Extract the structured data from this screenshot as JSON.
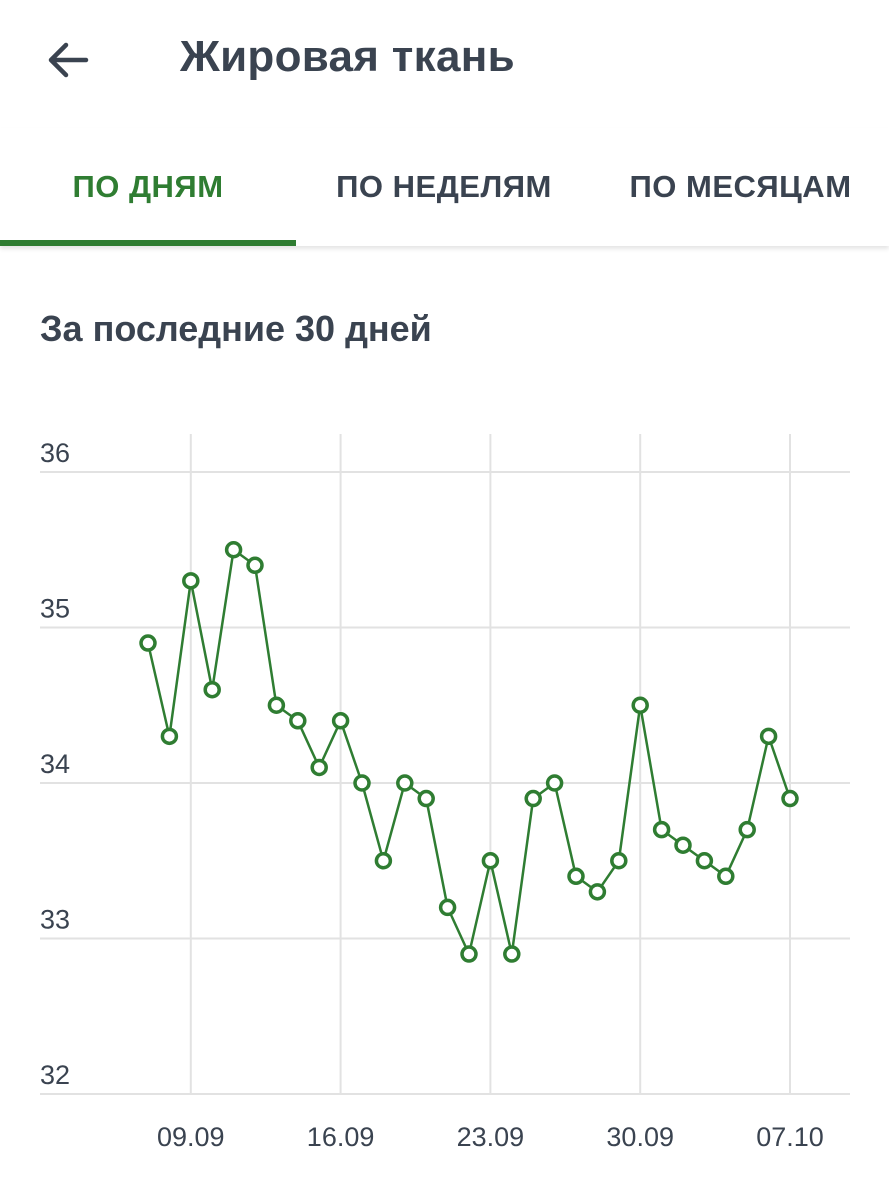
{
  "header": {
    "title": "Жировая ткань",
    "back_icon": "arrow-left-icon"
  },
  "tabs": [
    {
      "label": "ПО ДНЯМ",
      "active": true
    },
    {
      "label": "ПО НЕДЕЛЯМ",
      "active": false
    },
    {
      "label": "ПО МЕСЯЦАМ",
      "active": false
    }
  ],
  "period_label": "За последние 30 дней",
  "colors": {
    "accent": "#2f7d32",
    "text": "#3a4350",
    "grid": "#e2e2e2"
  },
  "chart_data": {
    "type": "line",
    "title": "",
    "xlabel": "",
    "ylabel": "",
    "ylim": [
      32,
      36
    ],
    "y_ticks": [
      "36",
      "35",
      "34",
      "33",
      "32"
    ],
    "x_ticks": [
      "09.09",
      "16.09",
      "23.09",
      "30.09",
      "07.10"
    ],
    "grid": true,
    "series": [
      {
        "x": [
          "07.09",
          "08.09",
          "09.09",
          "10.09",
          "11.09",
          "12.09",
          "13.09",
          "14.09",
          "15.09",
          "16.09",
          "17.09",
          "18.09",
          "19.09",
          "20.09",
          "21.09",
          "22.09",
          "23.09",
          "24.09",
          "25.09",
          "26.09",
          "27.09",
          "28.09",
          "29.09",
          "30.09",
          "01.10",
          "02.10",
          "03.10",
          "04.10",
          "05.10",
          "06.10",
          "07.10"
        ],
        "values": [
          34.9,
          34.3,
          35.3,
          34.6,
          35.5,
          35.4,
          34.5,
          34.4,
          34.1,
          34.4,
          34.0,
          33.5,
          34.0,
          33.9,
          33.2,
          32.9,
          33.5,
          32.9,
          33.9,
          34.0,
          33.4,
          33.3,
          33.5,
          34.5,
          33.7,
          33.6,
          33.5,
          33.4,
          33.7,
          34.3,
          33.9
        ]
      }
    ]
  }
}
